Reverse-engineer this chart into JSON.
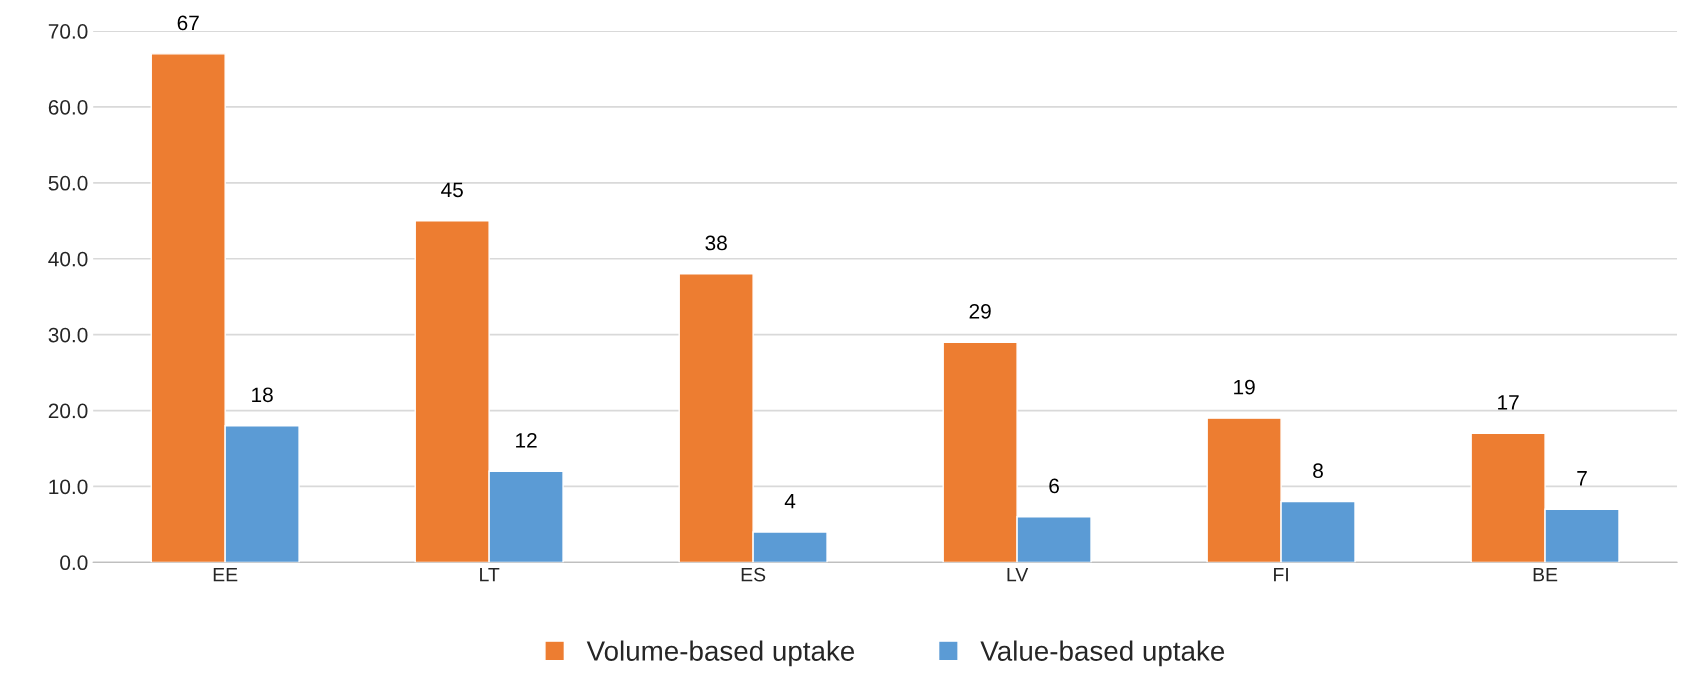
{
  "chart_data": {
    "type": "bar",
    "categories": [
      "EE",
      "LT",
      "ES",
      "LV",
      "FI",
      "BE"
    ],
    "series": [
      {
        "name": "Volume-based uptake",
        "color": "#ed7d31",
        "values": [
          67,
          45,
          38,
          29,
          19,
          17
        ]
      },
      {
        "name": "Value-based uptake",
        "color": "#5b9bd5",
        "values": [
          18,
          12,
          4,
          6,
          8,
          7
        ]
      }
    ],
    "ylim": [
      0,
      70
    ],
    "yticks": [
      {
        "value": 0,
        "label": "0.0"
      },
      {
        "value": 10,
        "label": "10.0"
      },
      {
        "value": 20,
        "label": "20.0"
      },
      {
        "value": 30,
        "label": "30.0"
      },
      {
        "value": 40,
        "label": "40.0"
      },
      {
        "value": 50,
        "label": "50.0"
      },
      {
        "value": 60,
        "label": "60.0"
      },
      {
        "value": 70,
        "label": "70.0"
      }
    ],
    "grid": "y",
    "legend": "bottom",
    "data_labels": true
  }
}
